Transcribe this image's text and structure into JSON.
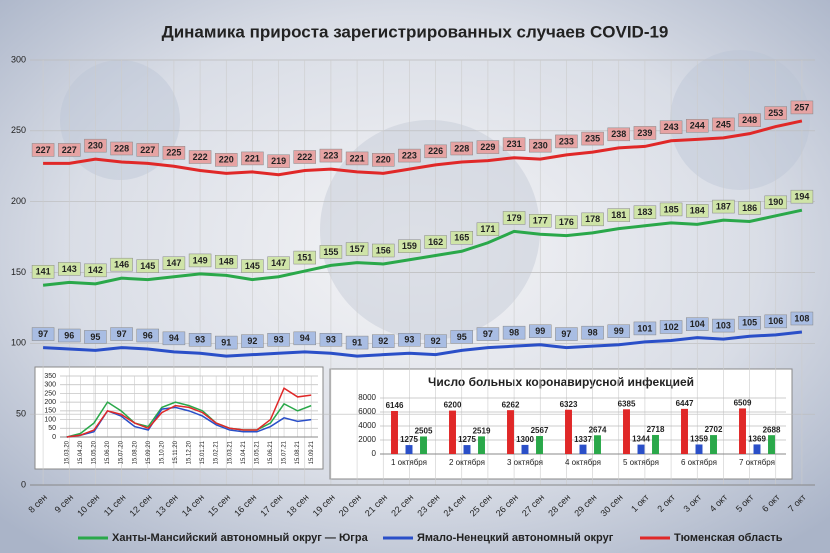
{
  "chart_data": [
    {
      "type": "line",
      "title": "Динамика прироста зарегистрированных случаев COVID-19",
      "categories": [
        "8 сен",
        "9 сен",
        "10 сен",
        "11 сен",
        "12 сен",
        "13 сен",
        "14 сен",
        "15 сен",
        "16 сен",
        "17 сен",
        "18 сен",
        "19 сен",
        "20 сен",
        "21 сен",
        "22 сен",
        "23 сен",
        "24 сен",
        "25 сен",
        "26 сен",
        "27 сен",
        "28 сен",
        "29 сен",
        "30 сен",
        "1 окт",
        "2 окт",
        "3 окт",
        "4 окт",
        "5 окт",
        "6 окт",
        "7 окт"
      ],
      "series": [
        {
          "name": "Ханты-Мансийский автономный округ — Югра",
          "color": "#2aa84a",
          "label_color": "#cfe4a8",
          "values": [
            141,
            143,
            142,
            146,
            145,
            147,
            149,
            148,
            145,
            147,
            151,
            155,
            157,
            156,
            159,
            162,
            165,
            171,
            179,
            177,
            176,
            178,
            181,
            183,
            185,
            184,
            187,
            186,
            190,
            194
          ]
        },
        {
          "name": "Ямало-Ненецкий автономный округ",
          "color": "#2a4fc8",
          "label_color": "#a9bde3",
          "values": [
            97,
            96,
            95,
            97,
            96,
            94,
            93,
            91,
            92,
            93,
            94,
            93,
            91,
            92,
            93,
            92,
            95,
            97,
            98,
            99,
            97,
            98,
            99,
            101,
            102,
            104,
            103,
            105,
            106,
            108
          ]
        },
        {
          "name": "Тюменская область",
          "color": "#e02828",
          "label_color": "#e6a3a3",
          "values": [
            227,
            227,
            230,
            228,
            227,
            225,
            222,
            220,
            221,
            219,
            222,
            223,
            221,
            220,
            223,
            226,
            228,
            229,
            231,
            230,
            233,
            235,
            238,
            239,
            243,
            244,
            245,
            248,
            253,
            257
          ]
        }
      ],
      "ylim": [
        0,
        300
      ],
      "yticks": [
        0,
        50,
        100,
        150,
        200,
        250,
        300
      ],
      "grid": true,
      "legend": "bottom"
    },
    {
      "type": "line",
      "categories": [
        "15.03.20",
        "15.04.20",
        "15.05.20",
        "15.06.20",
        "15.07.20",
        "15.08.20",
        "15.09.20",
        "15.10.20",
        "15.11.20",
        "15.12.20",
        "15.01.21",
        "15.02.21",
        "15.03.21",
        "15.04.21",
        "15.05.21",
        "15.06.21",
        "15.07.21",
        "15.08.21",
        "15.09.21"
      ],
      "series": [
        {
          "color": "#2aa84a",
          "values": [
            0,
            20,
            80,
            200,
            150,
            80,
            60,
            170,
            200,
            180,
            150,
            80,
            50,
            40,
            40,
            80,
            190,
            150,
            180
          ]
        },
        {
          "color": "#2a4fc8",
          "values": [
            0,
            10,
            30,
            150,
            120,
            60,
            40,
            160,
            170,
            150,
            120,
            70,
            40,
            30,
            30,
            60,
            110,
            90,
            100
          ]
        },
        {
          "color": "#e02828",
          "values": [
            0,
            10,
            40,
            150,
            130,
            80,
            50,
            140,
            180,
            170,
            140,
            80,
            50,
            40,
            40,
            100,
            280,
            230,
            240
          ]
        }
      ],
      "ylim": [
        0,
        350
      ],
      "yticks": [
        0,
        50,
        100,
        150,
        200,
        250,
        300,
        350
      ],
      "grid": true
    },
    {
      "type": "bar",
      "title": "Число больных коронавирусной инфекцией",
      "categories": [
        "1 октября",
        "2 октября",
        "3 октября",
        "4 октября",
        "5 октября",
        "6 октября",
        "7 октября"
      ],
      "series": [
        {
          "color": "#e02828",
          "values": [
            6146,
            6200,
            6262,
            6323,
            6385,
            6447,
            6509
          ]
        },
        {
          "color": "#2a4fc8",
          "values": [
            1275,
            1275,
            1300,
            1337,
            1344,
            1359,
            1369
          ]
        },
        {
          "color": "#2aa84a",
          "values": [
            2505,
            2519,
            2567,
            2674,
            2718,
            2702,
            2688
          ]
        }
      ],
      "ylim": [
        0,
        8000
      ],
      "yticks": [
        0,
        2000,
        4000,
        6000,
        8000
      ],
      "grid": true
    }
  ]
}
